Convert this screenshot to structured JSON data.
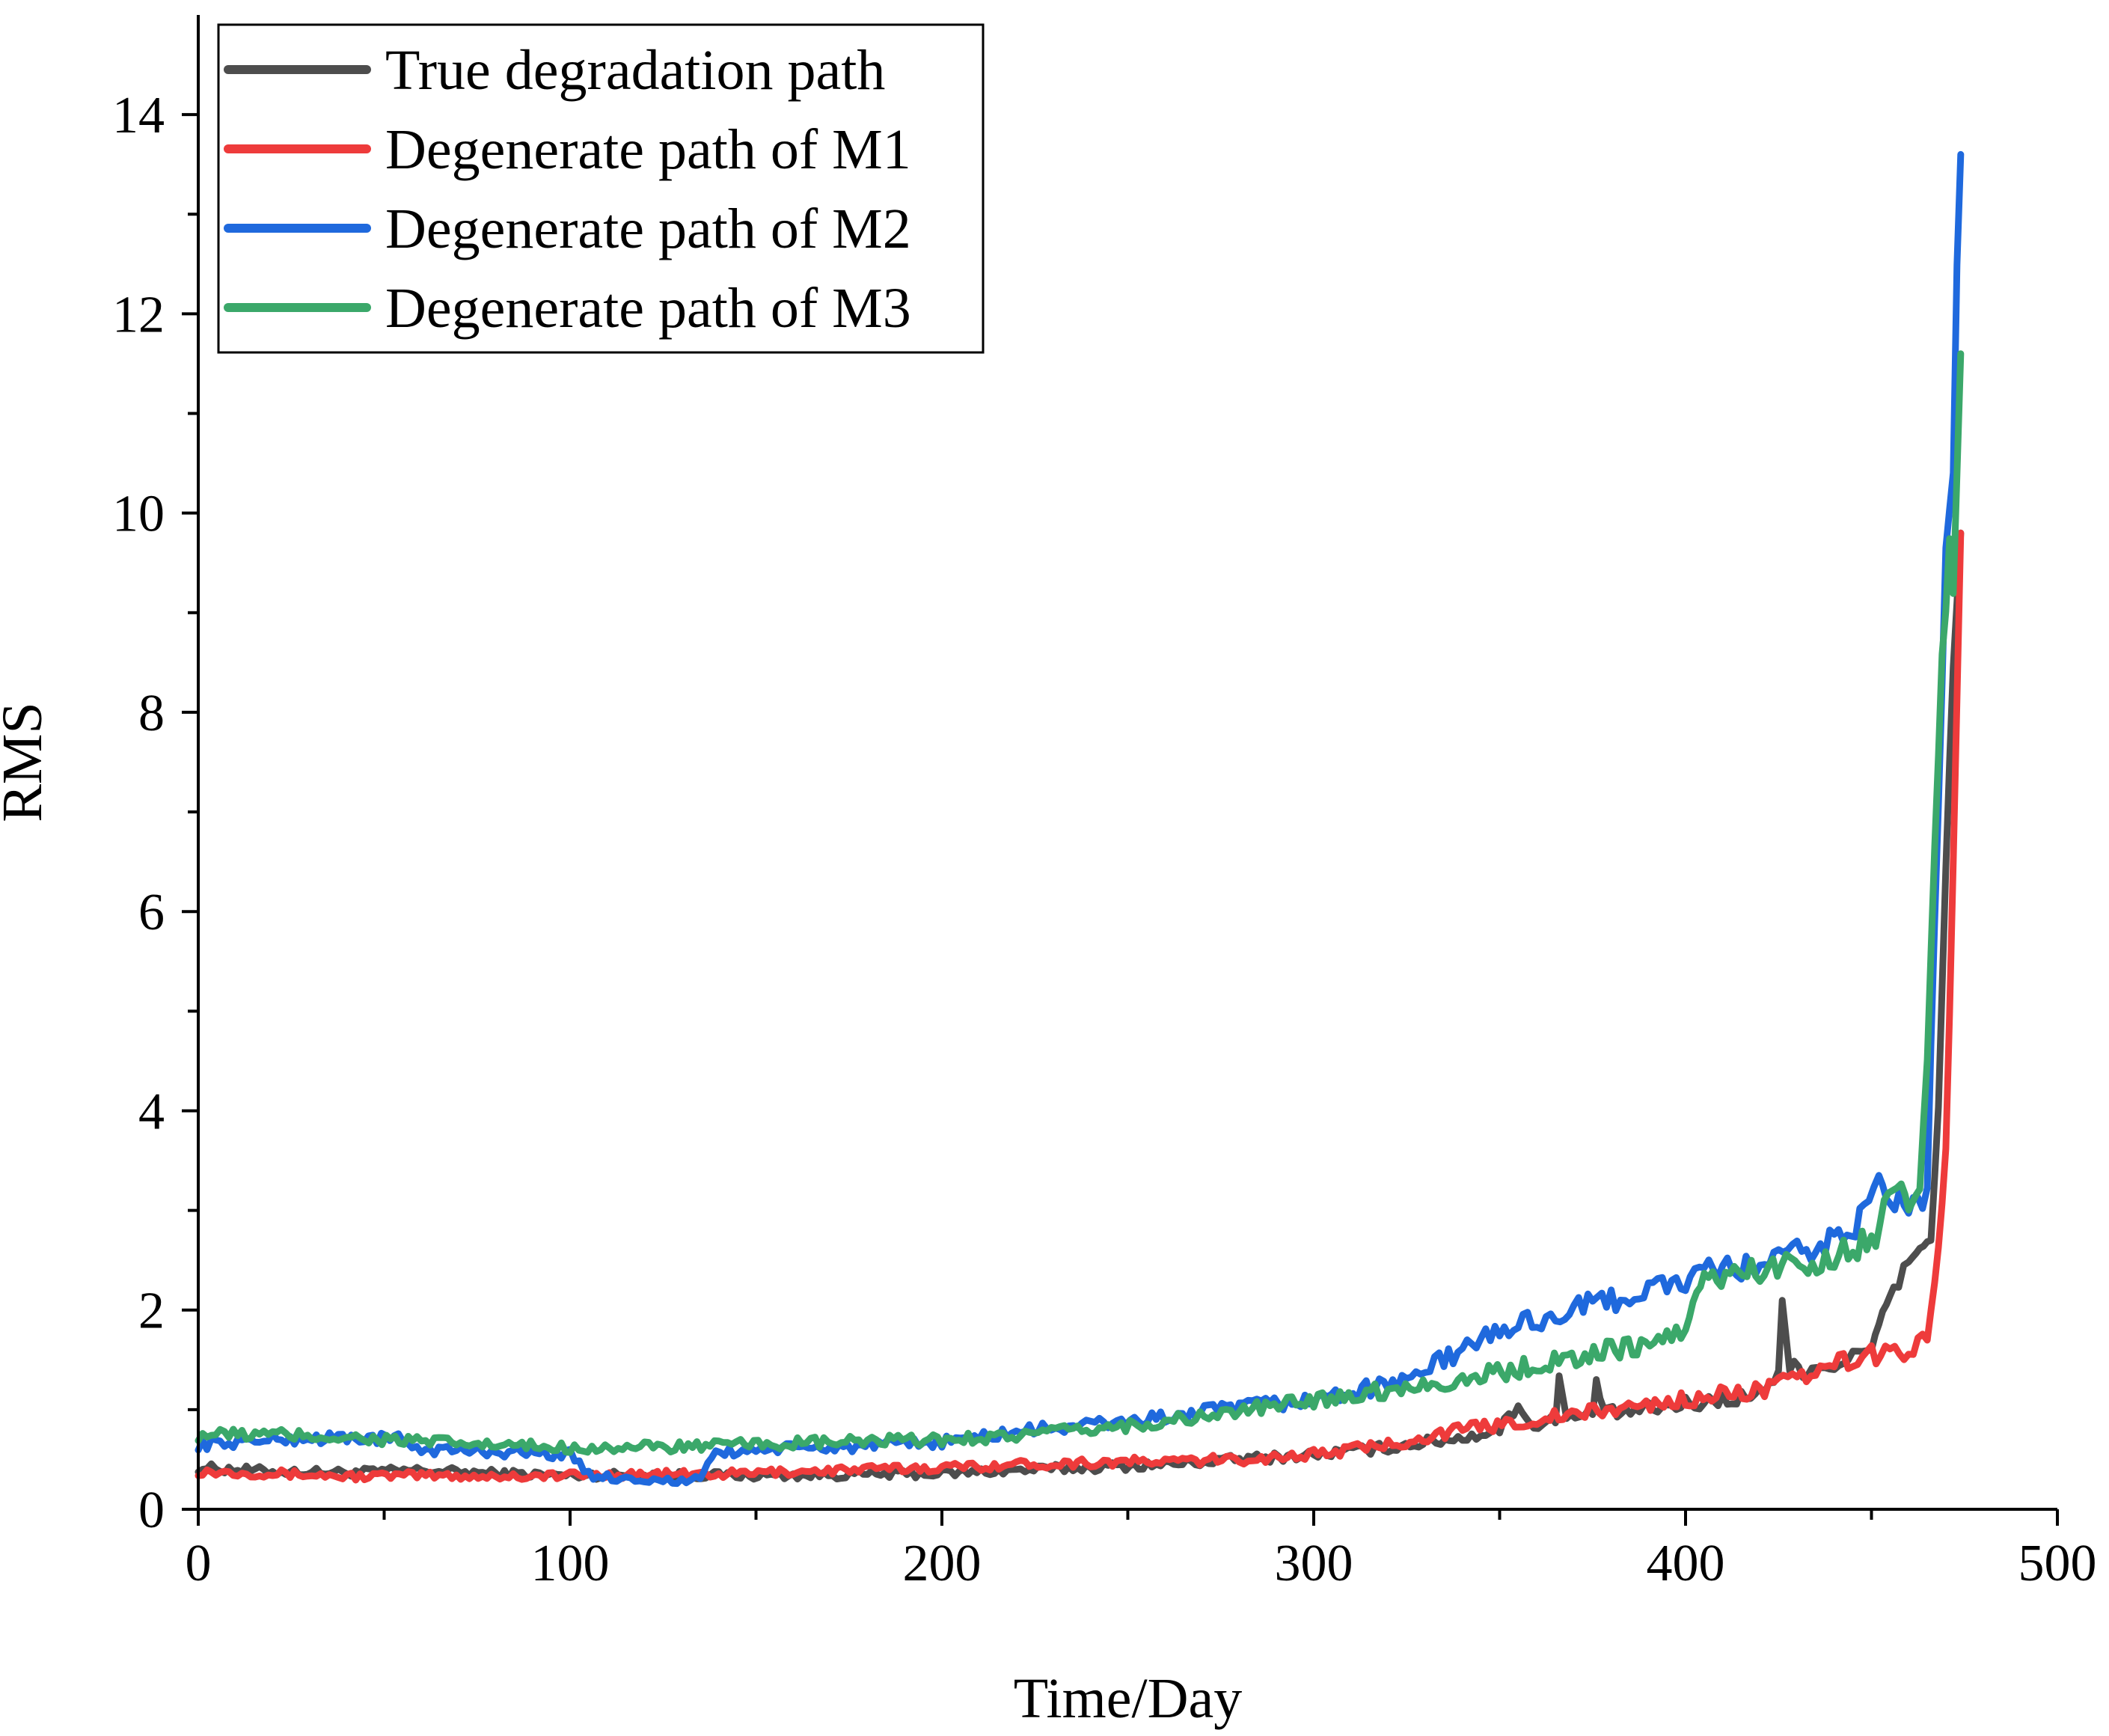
{
  "chart_data": {
    "type": "line",
    "title": "",
    "xlabel": "Time/Day",
    "ylabel": "RMS",
    "xlim": [
      0,
      500
    ],
    "ylim": [
      0,
      15
    ],
    "xticks": [
      0,
      100,
      200,
      300,
      400,
      500
    ],
    "yticks": [
      0,
      2,
      4,
      6,
      8,
      10,
      12,
      14
    ],
    "xtick_labels": [
      "0",
      "100",
      "200",
      "300",
      "400",
      "500"
    ],
    "ytick_labels": [
      "0",
      "2",
      "4",
      "6",
      "8",
      "10",
      "12",
      "14"
    ],
    "grid": false,
    "legend_position": "top-left",
    "series": [
      {
        "name": "True degradation path",
        "color": "#4d4d4d",
        "points": [
          [
            0,
            0.42
          ],
          [
            20,
            0.38
          ],
          [
            40,
            0.37
          ],
          [
            60,
            0.39
          ],
          [
            80,
            0.36
          ],
          [
            100,
            0.34
          ],
          [
            120,
            0.35
          ],
          [
            140,
            0.34
          ],
          [
            160,
            0.34
          ],
          [
            180,
            0.35
          ],
          [
            200,
            0.36
          ],
          [
            220,
            0.39
          ],
          [
            240,
            0.42
          ],
          [
            260,
            0.45
          ],
          [
            280,
            0.5
          ],
          [
            300,
            0.55
          ],
          [
            320,
            0.62
          ],
          [
            340,
            0.72
          ],
          [
            350,
            0.8
          ],
          [
            355,
            1.05
          ],
          [
            358,
            0.85
          ],
          [
            365,
            0.88
          ],
          [
            366,
            1.35
          ],
          [
            368,
            0.9
          ],
          [
            375,
            0.95
          ],
          [
            376,
            1.3
          ],
          [
            378,
            0.95
          ],
          [
            390,
            1.0
          ],
          [
            400,
            1.05
          ],
          [
            410,
            1.1
          ],
          [
            420,
            1.15
          ],
          [
            425,
            1.4
          ],
          [
            426,
            2.1
          ],
          [
            428,
            1.4
          ],
          [
            440,
            1.45
          ],
          [
            450,
            1.6
          ],
          [
            453,
            2.0
          ],
          [
            456,
            2.2
          ],
          [
            460,
            2.5
          ],
          [
            463,
            2.6
          ],
          [
            466,
            2.7
          ],
          [
            468,
            4.0
          ],
          [
            470,
            6.5
          ],
          [
            472,
            8.5
          ],
          [
            474,
            9.8
          ]
        ]
      },
      {
        "name": "Degenerate path of M1",
        "color": "#ee3b3b",
        "points": [
          [
            0,
            0.38
          ],
          [
            20,
            0.36
          ],
          [
            40,
            0.33
          ],
          [
            60,
            0.34
          ],
          [
            80,
            0.33
          ],
          [
            100,
            0.34
          ],
          [
            120,
            0.35
          ],
          [
            140,
            0.35
          ],
          [
            160,
            0.38
          ],
          [
            180,
            0.4
          ],
          [
            200,
            0.42
          ],
          [
            220,
            0.45
          ],
          [
            240,
            0.47
          ],
          [
            260,
            0.48
          ],
          [
            280,
            0.5
          ],
          [
            300,
            0.55
          ],
          [
            320,
            0.65
          ],
          [
            340,
            0.8
          ],
          [
            360,
            0.9
          ],
          [
            380,
            1.0
          ],
          [
            400,
            1.1
          ],
          [
            420,
            1.2
          ],
          [
            430,
            1.3
          ],
          [
            440,
            1.45
          ],
          [
            450,
            1.55
          ],
          [
            460,
            1.6
          ],
          [
            465,
            1.7
          ],
          [
            468,
            2.6
          ],
          [
            470,
            3.6
          ],
          [
            471,
            5.0
          ],
          [
            472,
            6.5
          ],
          [
            474,
            9.8
          ]
        ]
      },
      {
        "name": "Degenerate path of M2",
        "color": "#1f69dd",
        "points": [
          [
            0,
            0.65
          ],
          [
            20,
            0.7
          ],
          [
            40,
            0.72
          ],
          [
            55,
            0.7
          ],
          [
            60,
            0.6
          ],
          [
            80,
            0.58
          ],
          [
            100,
            0.55
          ],
          [
            105,
            0.35
          ],
          [
            110,
            0.32
          ],
          [
            120,
            0.3
          ],
          [
            130,
            0.28
          ],
          [
            135,
            0.3
          ],
          [
            138,
            0.55
          ],
          [
            150,
            0.6
          ],
          [
            170,
            0.62
          ],
          [
            190,
            0.65
          ],
          [
            200,
            0.68
          ],
          [
            210,
            0.72
          ],
          [
            220,
            0.78
          ],
          [
            240,
            0.85
          ],
          [
            260,
            0.92
          ],
          [
            280,
            1.02
          ],
          [
            300,
            1.1
          ],
          [
            320,
            1.25
          ],
          [
            330,
            1.4
          ],
          [
            340,
            1.6
          ],
          [
            350,
            1.8
          ],
          [
            360,
            1.9
          ],
          [
            370,
            2.0
          ],
          [
            380,
            2.1
          ],
          [
            390,
            2.2
          ],
          [
            400,
            2.3
          ],
          [
            410,
            2.4
          ],
          [
            420,
            2.45
          ],
          [
            430,
            2.55
          ],
          [
            440,
            2.7
          ],
          [
            448,
            2.95
          ],
          [
            452,
            3.35
          ],
          [
            455,
            3.0
          ],
          [
            460,
            3.1
          ],
          [
            465,
            3.2
          ],
          [
            466,
            4.7
          ],
          [
            468,
            7.0
          ],
          [
            470,
            9.7
          ],
          [
            472,
            10.5
          ],
          [
            473,
            12.6
          ],
          [
            474,
            13.6
          ]
        ]
      },
      {
        "name": "Degenerate path of M3",
        "color": "#3ba86a",
        "points": [
          [
            0,
            0.75
          ],
          [
            20,
            0.75
          ],
          [
            40,
            0.72
          ],
          [
            60,
            0.68
          ],
          [
            80,
            0.64
          ],
          [
            100,
            0.62
          ],
          [
            120,
            0.62
          ],
          [
            140,
            0.64
          ],
          [
            160,
            0.66
          ],
          [
            180,
            0.68
          ],
          [
            200,
            0.7
          ],
          [
            220,
            0.74
          ],
          [
            240,
            0.8
          ],
          [
            260,
            0.88
          ],
          [
            280,
            0.98
          ],
          [
            300,
            1.1
          ],
          [
            320,
            1.2
          ],
          [
            340,
            1.3
          ],
          [
            360,
            1.45
          ],
          [
            380,
            1.6
          ],
          [
            395,
            1.7
          ],
          [
            400,
            1.8
          ],
          [
            403,
            2.2
          ],
          [
            405,
            2.3
          ],
          [
            420,
            2.4
          ],
          [
            440,
            2.55
          ],
          [
            450,
            2.7
          ],
          [
            458,
            3.3
          ],
          [
            460,
            3.0
          ],
          [
            463,
            3.2
          ],
          [
            465,
            4.5
          ],
          [
            467,
            6.7
          ],
          [
            469,
            8.5
          ],
          [
            471,
            9.7
          ],
          [
            472,
            9.2
          ],
          [
            474,
            11.6
          ]
        ]
      }
    ]
  }
}
